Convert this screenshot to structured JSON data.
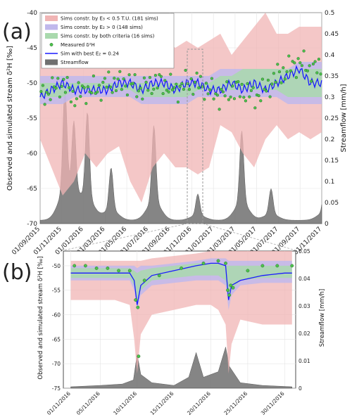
{
  "figure": {
    "panel_a_label": "(a)",
    "panel_b_label": "(b)",
    "legend": [
      {
        "key": "band_e3",
        "label": "Sims constr. by E₃ < 0.5 T.U. (181 sims)",
        "color": "#f0b4b4"
      },
      {
        "key": "band_e2",
        "label": "Sims constr. by E₂ > 0 (148 sims)",
        "color": "#c0b8ec"
      },
      {
        "key": "band_both",
        "label": "Sims constr. by both criteria (16 sims)",
        "color": "#a9d9ad"
      },
      {
        "key": "measured",
        "label": "Measured δ²H",
        "color": "#4cc24c"
      },
      {
        "key": "best_sim",
        "label": "Sim with best E₂ = 0.24",
        "color": "#1a1aff"
      },
      {
        "key": "streamflow",
        "label": "Streamflow",
        "color": "#707070"
      }
    ]
  },
  "chart_data": [
    {
      "panel": "(a)",
      "type": "line",
      "ylabel": "Observed and simulated stream δ²H [‰]",
      "y2label": "Streamflow [mm/h]",
      "ylim": [
        -70,
        -40
      ],
      "y2lim": [
        0,
        0.5
      ],
      "yticks": [
        -70,
        -65,
        -60,
        -55,
        -50,
        -45,
        -40
      ],
      "y2ticks": [
        0,
        0.05,
        0.1,
        0.15,
        0.2,
        0.25,
        0.3,
        0.35,
        0.4,
        0.45,
        0.5
      ],
      "xticks": [
        "01/09/2015",
        "01/11/2015",
        "01/01/2016",
        "01/03/2016",
        "01/05/2016",
        "01/07/2016",
        "01/09/2016",
        "01/11/2016",
        "01/01/2017",
        "01/03/2017",
        "01/05/2017",
        "01/07/2017",
        "01/09/2017",
        "01/11/2017"
      ],
      "grid": true,
      "legend_position": "top-left",
      "bands_by_month": {
        "e3_lo": [
          -58,
          -62,
          -66,
          -64,
          -60,
          -62,
          -60,
          -59,
          -64,
          -67,
          -62,
          -60,
          -62,
          -62,
          -63,
          -62,
          -56,
          -57,
          -60,
          -62,
          -58,
          -56,
          -58,
          -57,
          -58,
          -57
        ],
        "e3_hi": [
          -46,
          -44,
          -42,
          -45,
          -44,
          -45,
          -44,
          -42,
          -41,
          -40,
          -43,
          -44,
          -45,
          -44,
          -45,
          -44,
          -43,
          -46,
          -44,
          -42,
          -40,
          -43,
          -43,
          -42,
          -42,
          -42
        ],
        "e2_lo": [
          -53,
          -53,
          -53,
          -52,
          -52,
          -52,
          -52,
          -52,
          -52,
          -53,
          -53,
          -53,
          -53,
          -53,
          -52,
          -52,
          -52,
          -52,
          -52,
          -52,
          -52,
          -52,
          -53,
          -53,
          -53,
          -53
        ],
        "e2_hi": [
          -49,
          -49,
          -49,
          -49,
          -49,
          -49,
          -49,
          -49,
          -49,
          -49,
          -49,
          -49,
          -49,
          -49,
          -49,
          -49,
          -48,
          -48,
          -48,
          -48,
          -48,
          -48,
          -48,
          -47,
          -47,
          -47
        ],
        "both_lo": [
          -52,
          -52,
          -52,
          -51,
          -51,
          -51,
          -51,
          -51,
          -51,
          -52,
          -52,
          -52,
          -52,
          -52,
          -51,
          -51,
          -51,
          -51,
          -51,
          -51,
          -51,
          -51,
          -52,
          -52,
          -52,
          -52
        ],
        "both_hi": [
          -50,
          -50,
          -50,
          -50,
          -50,
          -50,
          -50,
          -50,
          -50,
          -50,
          -50,
          -50,
          -50,
          -50,
          -50,
          -50,
          -49,
          -49,
          -48,
          -48,
          -48,
          -48,
          -48,
          -48,
          -48,
          -48
        ],
        "best_sim": [
          -52,
          -51,
          -50,
          -51,
          -51,
          -51,
          -51,
          -50,
          -50,
          -51,
          -50,
          -50,
          -51,
          -50,
          -50,
          -51,
          -51,
          -50,
          -51,
          -50,
          -51,
          -50,
          -49,
          -48,
          -50,
          -50
        ]
      },
      "measured_by_month": [
        -52,
        -51,
        -50,
        -52,
        -51,
        -51,
        -50,
        -50,
        -50,
        -51,
        -50,
        -50,
        -51,
        -50,
        -50,
        -51,
        -52,
        -51,
        -51,
        -52,
        -51,
        -49,
        -48,
        -47,
        -48,
        -48
      ],
      "streamflow_peaks": [
        {
          "date_index": 2.2,
          "value": 0.24
        },
        {
          "date_index": 3.0,
          "value": 0.16
        },
        {
          "date_index": 4.2,
          "value": 0.2
        },
        {
          "date_index": 6.3,
          "value": 0.1
        },
        {
          "date_index": 10.1,
          "value": 0.18
        },
        {
          "date_index": 14.0,
          "value": 0.05
        },
        {
          "date_index": 17.9,
          "value": 0.17
        },
        {
          "date_index": 20.5,
          "value": 0.06
        },
        {
          "date_index": 25.3,
          "value": 0.08
        }
      ]
    },
    {
      "panel": "(b)",
      "type": "line",
      "ylabel": "Observed and simulated stream δ²H [‰]",
      "y2label": "Streamflow [mm/h]",
      "ylim": [
        -75,
        -47
      ],
      "y2lim": [
        0,
        0.05
      ],
      "yticks": [
        -75,
        -70,
        -65,
        -60,
        -55,
        -50
      ],
      "y2ticks": [
        0,
        0.01,
        0.02,
        0.03,
        0.04,
        0.05
      ],
      "xticks": [
        "01/11/2016",
        "05/11/2016",
        "10/11/2016",
        "15/11/2016",
        "20/11/2016",
        "25/11/2016",
        "30/11/2016"
      ],
      "xtick_days": [
        1,
        5,
        10,
        15,
        20,
        25,
        30
      ],
      "grid": true,
      "days": [
        1,
        3,
        5,
        7,
        9,
        9.6,
        10,
        10.5,
        12,
        15,
        18,
        20,
        21,
        22,
        22.4,
        22.8,
        24,
        27,
        30,
        31
      ],
      "e3_lo": [
        -57,
        -57,
        -57,
        -57,
        -58,
        -65,
        -72,
        -64,
        -60,
        -59,
        -58,
        -58,
        -59,
        -62,
        -72,
        -66,
        -61,
        -62,
        -62,
        -62
      ],
      "e3_hi": [
        -49,
        -49,
        -49,
        -49,
        -49,
        -49,
        -49,
        -49,
        -48.5,
        -48,
        -47.5,
        -47,
        -47,
        -47,
        -47,
        -47,
        -47,
        -47,
        -47,
        -47
      ],
      "e2_lo": [
        -53,
        -53,
        -53,
        -53,
        -53,
        -55,
        -59,
        -56,
        -54,
        -53.5,
        -53,
        -53,
        -53,
        -54,
        -59,
        -56,
        -54,
        -53.5,
        -53.5,
        -53.5
      ],
      "e2_hi": [
        -50,
        -50,
        -50,
        -50,
        -50,
        -50,
        -50.5,
        -50,
        -50,
        -49.5,
        -49,
        -48.5,
        -48.5,
        -48.5,
        -49,
        -49,
        -49,
        -49,
        -49,
        -49
      ],
      "both_lo": [
        -52.5,
        -52.5,
        -52.5,
        -52.5,
        -52.5,
        -54,
        -57,
        -55,
        -53,
        -52.5,
        -52,
        -52,
        -52,
        -53,
        -57,
        -55,
        -53,
        -52.5,
        -52.5,
        -52.5
      ],
      "both_hi": [
        -50.5,
        -50.5,
        -50.5,
        -50.5,
        -50.5,
        -51,
        -51.5,
        -51,
        -50.5,
        -50,
        -49.5,
        -49.5,
        -49.5,
        -50,
        -50,
        -50,
        -50,
        -50,
        -50,
        -50
      ],
      "best_sim": [
        -51.5,
        -51.5,
        -51.5,
        -51.5,
        -51.5,
        -53,
        -58,
        -54,
        -52,
        -51,
        -50,
        -49.5,
        -49.5,
        -50,
        -57,
        -54,
        -53,
        -52,
        -51.5,
        -51.5
      ],
      "measured": [
        {
          "day": 1.5,
          "value": -50
        },
        {
          "day": 3,
          "value": -50
        },
        {
          "day": 4.5,
          "value": -50.5
        },
        {
          "day": 6,
          "value": -50.5
        },
        {
          "day": 7.5,
          "value": -51
        },
        {
          "day": 9,
          "value": -51
        },
        {
          "day": 9.8,
          "value": -57
        },
        {
          "day": 10.1,
          "value": -58.5
        },
        {
          "day": 10.2,
          "value": -68.5
        },
        {
          "day": 11,
          "value": -53
        },
        {
          "day": 13,
          "value": -52
        },
        {
          "day": 16,
          "value": -50.5
        },
        {
          "day": 19,
          "value": -49.5
        },
        {
          "day": 21,
          "value": -49
        },
        {
          "day": 22,
          "value": -49.5
        },
        {
          "day": 22.3,
          "value": -55
        },
        {
          "day": 22.5,
          "value": -56
        },
        {
          "day": 22.7,
          "value": -54
        },
        {
          "day": 23,
          "value": -54.5
        },
        {
          "day": 25,
          "value": -51
        },
        {
          "day": 27,
          "value": -50
        },
        {
          "day": 29,
          "value": -50
        },
        {
          "day": 31,
          "value": -50
        }
      ],
      "streamflow": [
        {
          "day": 1,
          "value": 0.0005
        },
        {
          "day": 5,
          "value": 0.001
        },
        {
          "day": 8,
          "value": 0.0015
        },
        {
          "day": 9.5,
          "value": 0.003
        },
        {
          "day": 10,
          "value": 0.0125
        },
        {
          "day": 10.5,
          "value": 0.005
        },
        {
          "day": 12,
          "value": 0.002
        },
        {
          "day": 15,
          "value": 0.001
        },
        {
          "day": 17,
          "value": 0.004
        },
        {
          "day": 18,
          "value": 0.013
        },
        {
          "day": 19,
          "value": 0.004
        },
        {
          "day": 21,
          "value": 0.006
        },
        {
          "day": 22,
          "value": 0.015
        },
        {
          "day": 22.5,
          "value": 0.008
        },
        {
          "day": 24,
          "value": 0.002
        },
        {
          "day": 27,
          "value": 0.001
        },
        {
          "day": 31,
          "value": 0.0005
        }
      ]
    }
  ]
}
